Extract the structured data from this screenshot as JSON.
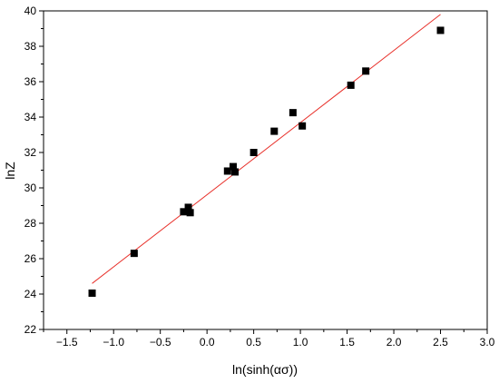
{
  "chart_data": {
    "type": "scatter",
    "title": "",
    "xlabel": "ln(sinh(ασ))",
    "ylabel": "lnZ",
    "xlim": [
      -1.75,
      3.0
    ],
    "ylim": [
      22,
      40
    ],
    "xticks": [
      -1.5,
      -1.0,
      -0.5,
      0.0,
      0.5,
      1.0,
      1.5,
      2.0,
      2.5,
      3.0
    ],
    "xtick_labels": [
      "−1.5",
      "−1.0",
      "−0.5",
      "0.0",
      "0.5",
      "1.0",
      "1.5",
      "2.0",
      "2.5",
      "3.0"
    ],
    "yticks": [
      22,
      24,
      26,
      28,
      30,
      32,
      34,
      36,
      38,
      40
    ],
    "ytick_labels": [
      "22",
      "24",
      "26",
      "28",
      "30",
      "32",
      "34",
      "36",
      "38",
      "40"
    ],
    "grid": false,
    "legend": "none",
    "series": [
      {
        "marker": "square",
        "color": "#000000",
        "x": [
          -1.23,
          -0.78,
          -0.25,
          -0.2,
          -0.18,
          0.22,
          0.28,
          0.3,
          0.5,
          0.72,
          0.92,
          1.02,
          1.54,
          1.7,
          2.5
        ],
        "y": [
          24.05,
          26.3,
          28.65,
          28.9,
          28.6,
          30.95,
          31.2,
          30.9,
          32.0,
          33.2,
          34.25,
          33.5,
          35.8,
          36.6,
          38.9
        ]
      }
    ],
    "fit_line": {
      "color": "#e8302a",
      "x": [
        -1.23,
        2.5
      ],
      "y": [
        24.6,
        39.8
      ]
    }
  }
}
